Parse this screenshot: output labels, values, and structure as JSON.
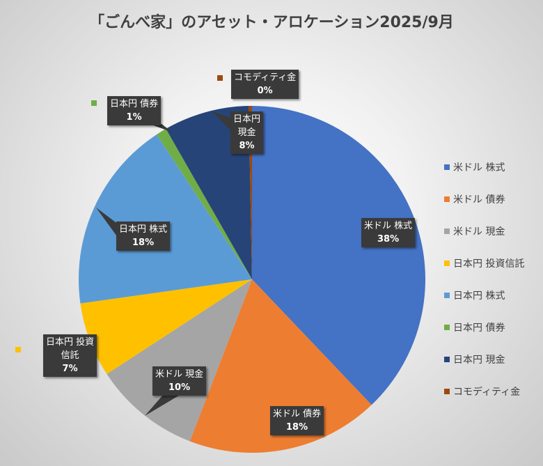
{
  "chart_data": {
    "type": "pie",
    "title": "「ごんべ家」のアセット・アロケーション2025/9月",
    "categories": [
      "米ドル 株式",
      "米ドル 債券",
      "米ドル 現金",
      "日本円 投資信託",
      "日本円 株式",
      "日本円 債券",
      "日本円 現金",
      "コモディティ金"
    ],
    "values": [
      38,
      18,
      10,
      7,
      18,
      1,
      8,
      0.3
    ],
    "data_labels": [
      "38%",
      "18%",
      "10%",
      "7%",
      "18%",
      "1%",
      "8%",
      "0%"
    ],
    "label_texts": [
      "米ドル 株式",
      "米ドル 債券",
      "米ドル 現金",
      "日本円 投資\n信託",
      "日本円 株式",
      "日本円 債券",
      "日本円\n現金",
      "コモディティ金"
    ],
    "colors": [
      "#4472c4",
      "#ed7d31",
      "#a5a5a5",
      "#ffc000",
      "#5b9bd5",
      "#70ad47",
      "#264478",
      "#9e480e"
    ],
    "legend_position": "right"
  }
}
